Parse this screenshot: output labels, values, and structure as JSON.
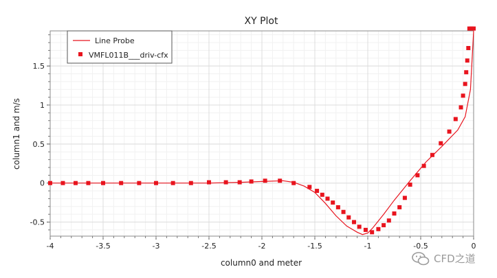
{
  "chart_data": {
    "type": "line",
    "title": "XY Plot",
    "xlabel": "column0 and meter",
    "ylabel": "column1 and m/s",
    "xlim": [
      -4,
      0
    ],
    "ylim": [
      -0.68,
      1.95
    ],
    "x_ticks": [
      "-4",
      "-3.5",
      "-3",
      "-2.5",
      "-2",
      "-1.5",
      "-1",
      "-0.5",
      "0"
    ],
    "y_ticks": [
      "-0.5",
      "0",
      "0.5",
      "1",
      "1.5"
    ],
    "grid": true,
    "legend_position": "top-left",
    "series": [
      {
        "name": "Line Probe",
        "style": "line",
        "color": "#e8141e",
        "x": [
          -4.0,
          -3.5,
          -3.0,
          -2.5,
          -2.2,
          -2.0,
          -1.8,
          -1.7,
          -1.6,
          -1.5,
          -1.4,
          -1.3,
          -1.2,
          -1.1,
          -1.05,
          -1.0,
          -0.95,
          -0.85,
          -0.75,
          -0.6,
          -0.45,
          -0.3,
          -0.15,
          -0.08,
          -0.03,
          0.0
        ],
        "y": [
          0.0,
          0.0,
          0.0,
          0.0,
          0.01,
          0.02,
          0.03,
          0.01,
          -0.04,
          -0.12,
          -0.26,
          -0.42,
          -0.55,
          -0.63,
          -0.66,
          -0.64,
          -0.57,
          -0.4,
          -0.22,
          0.03,
          0.27,
          0.47,
          0.68,
          0.85,
          1.2,
          1.95
        ]
      },
      {
        "name": "VMFL011B___driv-cfx",
        "style": "markers",
        "color": "#e8141e",
        "x": [
          -4.0,
          -3.88,
          -3.76,
          -3.64,
          -3.5,
          -3.33,
          -3.16,
          -3.0,
          -2.84,
          -2.67,
          -2.5,
          -2.34,
          -2.21,
          -2.1,
          -1.97,
          -1.83,
          -1.7,
          -1.55,
          -1.48,
          -1.43,
          -1.38,
          -1.33,
          -1.28,
          -1.23,
          -1.18,
          -1.13,
          -1.08,
          -1.02,
          -0.96,
          -0.9,
          -0.85,
          -0.8,
          -0.75,
          -0.7,
          -0.65,
          -0.6,
          -0.53,
          -0.47,
          -0.39,
          -0.31,
          -0.23,
          -0.17,
          -0.12,
          -0.1,
          -0.08,
          -0.07,
          -0.06,
          -0.05,
          -0.04,
          -0.02,
          0.0
        ],
        "y": [
          0.0,
          0.0,
          0.0,
          0.0,
          0.0,
          0.0,
          0.0,
          0.0,
          0.0,
          0.0,
          0.01,
          0.01,
          0.01,
          0.02,
          0.03,
          0.03,
          0.0,
          -0.05,
          -0.1,
          -0.15,
          -0.2,
          -0.25,
          -0.31,
          -0.37,
          -0.44,
          -0.5,
          -0.56,
          -0.6,
          -0.63,
          -0.59,
          -0.54,
          -0.48,
          -0.39,
          -0.31,
          -0.19,
          -0.02,
          0.1,
          0.22,
          0.36,
          0.51,
          0.66,
          0.82,
          0.97,
          1.12,
          1.27,
          1.42,
          1.57,
          1.73,
          1.98,
          1.98,
          1.98
        ]
      }
    ]
  },
  "watermark": {
    "text": "CFD之道",
    "icon": "wechat-icon"
  }
}
